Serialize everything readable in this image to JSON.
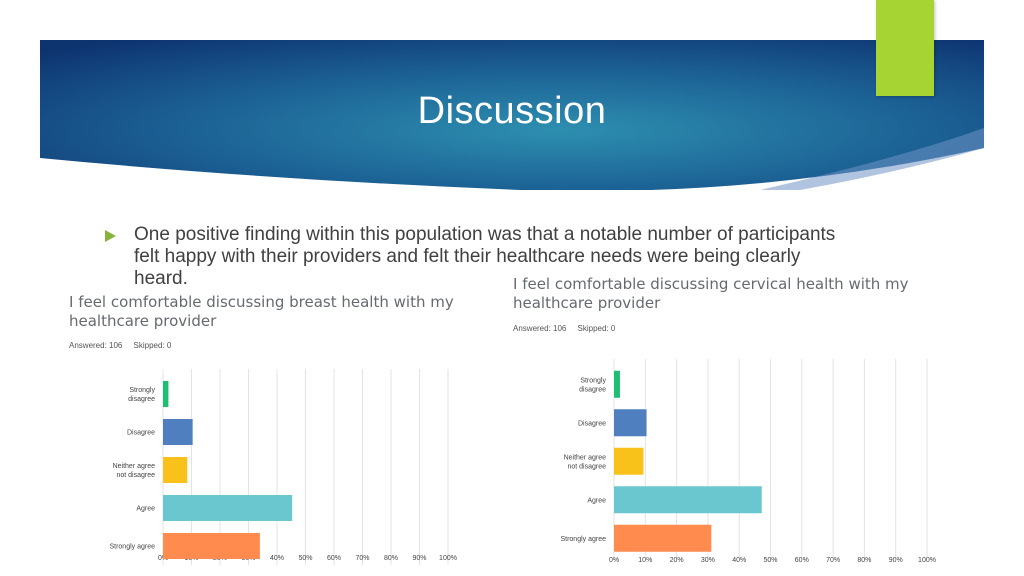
{
  "slide": {
    "title": "Discussion",
    "bullet": "One positive finding within this population was that a notable number of participants felt happy with their providers and felt their healthcare needs were being clearly heard."
  },
  "colors": {
    "banner_dark": "#0e3470",
    "banner_light": "#2d8fb0",
    "accent_green": "#a6d433",
    "bullet_marker": "#86b33a"
  },
  "chart_data": [
    {
      "type": "bar",
      "orientation": "horizontal",
      "title": "I feel comfortable discussing breast health with my healthcare provider",
      "answered": "Answered: 106",
      "skipped": "Skipped: 0",
      "categories": [
        "Strongly disagree",
        "Disagree",
        "Neither agree not disagree",
        "Agree",
        "Strongly agree"
      ],
      "category_lines": [
        [
          "Strongly",
          "disagree"
        ],
        [
          "Disagree"
        ],
        [
          "Neither agree",
          "not disagree"
        ],
        [
          "Agree"
        ],
        [
          "Strongly agree"
        ]
      ],
      "values": [
        1.9,
        10.4,
        8.5,
        45.3,
        34.0
      ],
      "bar_colors": [
        "#1fbf73",
        "#4f7fbf",
        "#f8c21a",
        "#6ac7cf",
        "#ff8b4f"
      ],
      "xlim": [
        0,
        100
      ],
      "ticks": [
        "0%",
        "10%",
        "20%",
        "30%",
        "40%",
        "50%",
        "60%",
        "70%",
        "80%",
        "90%",
        "100%"
      ],
      "grid": true
    },
    {
      "type": "bar",
      "orientation": "horizontal",
      "title": "I feel comfortable discussing cervical health with my healthcare provider",
      "answered": "Answered: 106",
      "skipped": "Skipped: 0",
      "categories": [
        "Strongly disagree",
        "Disagree",
        "Neither agree not disagree",
        "Agree",
        "Strongly agree"
      ],
      "category_lines": [
        [
          "Strongly",
          "disagree"
        ],
        [
          "Disagree"
        ],
        [
          "Neither agree",
          "not disagree"
        ],
        [
          "Agree"
        ],
        [
          "Strongly agree"
        ]
      ],
      "values": [
        1.9,
        10.4,
        9.4,
        47.2,
        31.1
      ],
      "bar_colors": [
        "#1fbf73",
        "#4f7fbf",
        "#f8c21a",
        "#6ac7cf",
        "#ff8b4f"
      ],
      "xlim": [
        0,
        100
      ],
      "ticks": [
        "0%",
        "10%",
        "20%",
        "30%",
        "40%",
        "50%",
        "60%",
        "70%",
        "80%",
        "90%",
        "100%"
      ],
      "grid": true
    }
  ]
}
